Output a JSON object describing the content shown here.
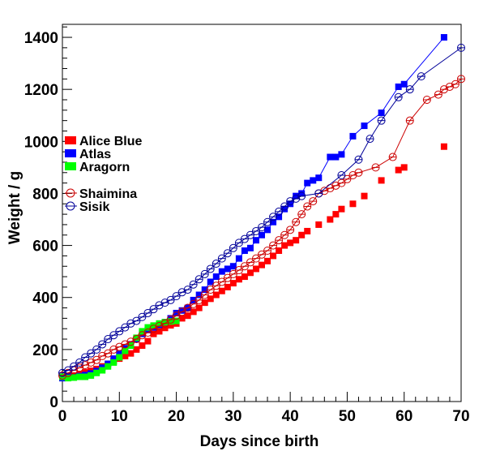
{
  "chart_data": {
    "type": "scatter",
    "xlabel": "Days since birth",
    "ylabel": "Weight / g",
    "xlim": [
      0,
      70
    ],
    "ylim": [
      0,
      1450
    ],
    "x_ticks": [
      0,
      10,
      20,
      30,
      40,
      50,
      60,
      70
    ],
    "y_ticks": [
      0,
      200,
      400,
      600,
      800,
      1000,
      1200,
      1400
    ],
    "grid": false,
    "legend_position": "left",
    "series": [
      {
        "name": "Alice Blue",
        "color": "#ff0000",
        "marker": "filled-square",
        "line": false,
        "x": [
          0,
          1,
          2,
          3,
          4,
          5,
          6,
          7,
          8,
          9,
          10,
          11,
          12,
          13,
          14,
          15,
          16,
          17,
          18,
          19,
          20,
          21,
          22,
          23,
          24,
          25,
          26,
          27,
          28,
          29,
          30,
          31,
          32,
          33,
          34,
          35,
          36,
          37,
          38,
          39,
          40,
          41,
          42,
          43,
          45,
          47,
          48,
          49,
          51,
          53,
          56,
          59,
          60,
          67
        ],
        "y": [
          95,
          97,
          100,
          105,
          112,
          118,
          125,
          135,
          145,
          155,
          165,
          175,
          185,
          200,
          215,
          232,
          260,
          270,
          283,
          293,
          300,
          320,
          330,
          345,
          360,
          380,
          395,
          410,
          425,
          440,
          455,
          470,
          480,
          495,
          510,
          525,
          540,
          560,
          580,
          600,
          610,
          620,
          640,
          655,
          680,
          700,
          720,
          740,
          760,
          790,
          850,
          890,
          900,
          980
        ]
      },
      {
        "name": "Atlas",
        "color": "#0000ff",
        "marker": "filled-square",
        "line": true,
        "x": [
          0,
          1,
          2,
          3,
          4,
          5,
          6,
          7,
          8,
          9,
          10,
          11,
          12,
          13,
          14,
          15,
          16,
          17,
          18,
          19,
          20,
          21,
          22,
          23,
          24,
          25,
          26,
          27,
          28,
          29,
          30,
          31,
          32,
          33,
          34,
          35,
          36,
          37,
          38,
          39,
          40,
          41,
          42,
          43,
          44,
          45,
          47,
          48,
          49,
          51,
          53,
          56,
          59,
          60,
          67
        ],
        "y": [
          90,
          93,
          95,
          98,
          102,
          108,
          117,
          130,
          145,
          165,
          185,
          205,
          220,
          240,
          260,
          275,
          285,
          295,
          305,
          320,
          340,
          350,
          360,
          390,
          410,
          430,
          460,
          480,
          500,
          510,
          520,
          550,
          580,
          590,
          620,
          640,
          660,
          690,
          710,
          740,
          760,
          790,
          800,
          840,
          850,
          860,
          940,
          940,
          950,
          1020,
          1060,
          1110,
          1210,
          1220,
          1400
        ]
      },
      {
        "name": "Aragorn",
        "color": "#00ff00",
        "marker": "filled-square",
        "line": false,
        "x": [
          0,
          1,
          2,
          3,
          4,
          5,
          6,
          7,
          8,
          9,
          10,
          11,
          12,
          13,
          14,
          15,
          16,
          17,
          18,
          19,
          20
        ],
        "y": [
          95,
          90,
          92,
          95,
          95,
          100,
          110,
          120,
          135,
          150,
          170,
          195,
          215,
          245,
          270,
          285,
          292,
          300,
          305,
          308,
          310
        ]
      },
      {
        "name": "Shaimina",
        "color": "#cc0000",
        "marker": "open-circle",
        "line": true,
        "x": [
          0,
          1,
          2,
          3,
          4,
          5,
          6,
          7,
          8,
          9,
          10,
          11,
          12,
          13,
          14,
          15,
          16,
          17,
          18,
          19,
          20,
          21,
          22,
          23,
          24,
          25,
          26,
          27,
          28,
          29,
          30,
          31,
          32,
          33,
          34,
          35,
          36,
          37,
          38,
          39,
          40,
          41,
          42,
          43,
          44,
          45,
          46,
          47,
          48,
          49,
          50,
          51,
          52,
          55,
          58,
          61,
          64,
          66,
          67,
          68,
          69,
          70
        ],
        "y": [
          100,
          110,
          120,
          130,
          140,
          150,
          160,
          175,
          185,
          200,
          210,
          220,
          230,
          240,
          255,
          265,
          280,
          290,
          300,
          315,
          330,
          345,
          360,
          375,
          390,
          410,
          430,
          445,
          460,
          475,
          490,
          505,
          520,
          535,
          550,
          565,
          580,
          600,
          620,
          640,
          660,
          690,
          720,
          750,
          770,
          800,
          810,
          820,
          830,
          840,
          855,
          870,
          880,
          900,
          940,
          1080,
          1160,
          1180,
          1200,
          1210,
          1220,
          1240
        ]
      },
      {
        "name": "Sisik",
        "color": "#000099",
        "marker": "open-circle",
        "line": true,
        "x": [
          0,
          1,
          2,
          3,
          4,
          5,
          6,
          7,
          8,
          9,
          10,
          11,
          12,
          13,
          14,
          15,
          16,
          17,
          18,
          19,
          20,
          21,
          22,
          23,
          24,
          25,
          26,
          27,
          28,
          29,
          30,
          31,
          32,
          33,
          34,
          35,
          36,
          37,
          38,
          39,
          40,
          41,
          42,
          45,
          49,
          52,
          54,
          56,
          59,
          61,
          63,
          70
        ],
        "y": [
          110,
          120,
          135,
          150,
          170,
          185,
          200,
          220,
          240,
          255,
          270,
          285,
          300,
          310,
          325,
          340,
          355,
          370,
          380,
          390,
          405,
          420,
          430,
          450,
          470,
          490,
          510,
          530,
          550,
          570,
          590,
          610,
          625,
          640,
          655,
          670,
          690,
          710,
          730,
          750,
          770,
          780,
          790,
          800,
          870,
          930,
          1010,
          1080,
          1170,
          1200,
          1250,
          1360
        ]
      }
    ]
  }
}
